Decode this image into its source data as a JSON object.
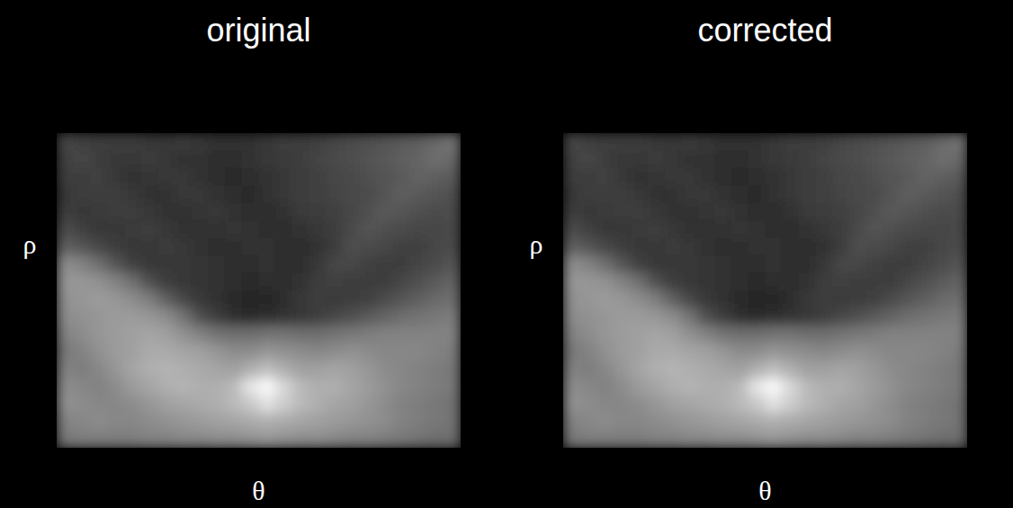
{
  "chart_data": [
    {
      "type": "heatmap",
      "title": "original",
      "xlabel": "θ",
      "ylabel": "ρ",
      "tick_labels": false,
      "zlim": [
        0,
        255
      ],
      "cells": [
        [
          70,
          65,
          60,
          62,
          60,
          55,
          55,
          58,
          55,
          50,
          48,
          50,
          55,
          60,
          60,
          65,
          70,
          75,
          80,
          85,
          90,
          95,
          105,
          115
        ],
        [
          65,
          70,
          60,
          55,
          55,
          58,
          55,
          50,
          48,
          45,
          45,
          50,
          55,
          58,
          62,
          68,
          72,
          78,
          82,
          88,
          95,
          100,
          110,
          105
        ],
        [
          60,
          60,
          65,
          55,
          50,
          52,
          55,
          55,
          50,
          45,
          42,
          45,
          50,
          55,
          60,
          65,
          70,
          72,
          80,
          85,
          90,
          100,
          95,
          90
        ],
        [
          55,
          60,
          60,
          62,
          55,
          50,
          50,
          55,
          55,
          50,
          45,
          42,
          48,
          55,
          60,
          65,
          68,
          72,
          75,
          85,
          95,
          90,
          85,
          80
        ],
        [
          60,
          55,
          58,
          60,
          60,
          55,
          50,
          50,
          52,
          55,
          48,
          45,
          45,
          50,
          58,
          62,
          65,
          70,
          80,
          90,
          85,
          80,
          75,
          75
        ],
        [
          75,
          65,
          55,
          55,
          58,
          60,
          55,
          50,
          48,
          50,
          52,
          48,
          45,
          45,
          50,
          55,
          60,
          72,
          85,
          80,
          75,
          70,
          70,
          72
        ],
        [
          95,
          85,
          70,
          60,
          55,
          55,
          58,
          55,
          50,
          45,
          45,
          50,
          48,
          45,
          45,
          50,
          62,
          78,
          75,
          70,
          65,
          65,
          70,
          75
        ],
        [
          140,
          130,
          110,
          85,
          65,
          55,
          55,
          55,
          52,
          48,
          45,
          45,
          48,
          45,
          45,
          55,
          70,
          70,
          65,
          62,
          62,
          68,
          75,
          85
        ],
        [
          150,
          150,
          145,
          130,
          110,
          80,
          60,
          55,
          52,
          50,
          45,
          42,
          45,
          45,
          50,
          62,
          65,
          62,
          60,
          62,
          70,
          80,
          90,
          100
        ],
        [
          145,
          150,
          155,
          150,
          140,
          125,
          95,
          70,
          55,
          48,
          42,
          40,
          40,
          45,
          55,
          60,
          58,
          60,
          65,
          75,
          85,
          95,
          105,
          110
        ],
        [
          140,
          145,
          150,
          155,
          155,
          150,
          140,
          115,
          80,
          60,
          45,
          42,
          45,
          50,
          55,
          60,
          70,
          80,
          90,
          100,
          110,
          115,
          120,
          125
        ],
        [
          130,
          140,
          150,
          155,
          160,
          165,
          160,
          145,
          130,
          115,
          110,
          110,
          115,
          115,
          110,
          110,
          115,
          120,
          125,
          130,
          130,
          130,
          130,
          130
        ],
        [
          120,
          130,
          145,
          155,
          160,
          170,
          170,
          165,
          160,
          150,
          140,
          140,
          150,
          145,
          140,
          135,
          140,
          145,
          140,
          135,
          135,
          135,
          130,
          125
        ],
        [
          130,
          125,
          135,
          150,
          165,
          175,
          180,
          175,
          170,
          165,
          160,
          175,
          190,
          175,
          160,
          160,
          165,
          160,
          150,
          140,
          135,
          130,
          125,
          120
        ],
        [
          140,
          135,
          130,
          140,
          155,
          165,
          175,
          180,
          175,
          175,
          185,
          230,
          250,
          215,
          185,
          175,
          175,
          165,
          155,
          145,
          135,
          130,
          125,
          120
        ],
        [
          145,
          140,
          135,
          135,
          140,
          150,
          160,
          165,
          170,
          175,
          185,
          200,
          225,
          205,
          185,
          175,
          165,
          160,
          150,
          140,
          130,
          125,
          120,
          115
        ],
        [
          130,
          135,
          140,
          135,
          135,
          140,
          145,
          150,
          155,
          160,
          165,
          170,
          175,
          170,
          165,
          160,
          155,
          150,
          145,
          140,
          130,
          125,
          120,
          115
        ],
        [
          120,
          125,
          125,
          125,
          125,
          130,
          130,
          135,
          135,
          140,
          140,
          145,
          150,
          145,
          140,
          140,
          135,
          130,
          130,
          125,
          120,
          115,
          110,
          110
        ]
      ]
    },
    {
      "type": "heatmap",
      "title": "corrected",
      "xlabel": "θ",
      "ylabel": "ρ",
      "tick_labels": false,
      "zlim": [
        0,
        255
      ],
      "cells": [
        [
          70,
          65,
          60,
          62,
          60,
          55,
          55,
          58,
          55,
          50,
          48,
          50,
          55,
          60,
          60,
          65,
          70,
          75,
          80,
          85,
          90,
          95,
          105,
          115
        ],
        [
          65,
          70,
          60,
          55,
          55,
          58,
          55,
          50,
          48,
          45,
          45,
          50,
          55,
          58,
          62,
          68,
          72,
          78,
          82,
          88,
          95,
          100,
          110,
          105
        ],
        [
          60,
          60,
          65,
          55,
          50,
          52,
          55,
          55,
          50,
          45,
          42,
          45,
          50,
          55,
          60,
          65,
          70,
          72,
          80,
          85,
          90,
          100,
          95,
          90
        ],
        [
          55,
          60,
          60,
          62,
          55,
          50,
          50,
          55,
          55,
          50,
          45,
          42,
          48,
          55,
          60,
          65,
          68,
          72,
          75,
          85,
          95,
          90,
          85,
          80
        ],
        [
          60,
          55,
          58,
          60,
          60,
          55,
          50,
          50,
          52,
          55,
          48,
          45,
          45,
          50,
          58,
          62,
          65,
          70,
          80,
          90,
          85,
          80,
          75,
          75
        ],
        [
          75,
          65,
          55,
          55,
          58,
          60,
          55,
          50,
          48,
          50,
          52,
          48,
          45,
          45,
          50,
          55,
          60,
          72,
          85,
          80,
          75,
          70,
          70,
          72
        ],
        [
          95,
          85,
          70,
          60,
          55,
          55,
          58,
          55,
          50,
          45,
          45,
          50,
          48,
          45,
          45,
          50,
          62,
          78,
          75,
          70,
          65,
          65,
          70,
          75
        ],
        [
          140,
          130,
          110,
          85,
          65,
          55,
          55,
          55,
          52,
          48,
          45,
          45,
          48,
          45,
          45,
          55,
          70,
          70,
          65,
          62,
          62,
          68,
          75,
          85
        ],
        [
          150,
          150,
          145,
          130,
          110,
          80,
          60,
          55,
          52,
          50,
          45,
          42,
          45,
          45,
          50,
          62,
          65,
          62,
          60,
          62,
          70,
          80,
          90,
          100
        ],
        [
          145,
          150,
          155,
          150,
          140,
          125,
          95,
          70,
          55,
          48,
          42,
          40,
          40,
          45,
          55,
          60,
          58,
          60,
          65,
          75,
          85,
          95,
          105,
          110
        ],
        [
          140,
          145,
          150,
          155,
          155,
          150,
          140,
          115,
          80,
          60,
          45,
          42,
          45,
          50,
          55,
          60,
          70,
          80,
          90,
          100,
          110,
          115,
          120,
          125
        ],
        [
          130,
          140,
          150,
          155,
          160,
          165,
          160,
          145,
          130,
          115,
          110,
          110,
          115,
          115,
          110,
          110,
          115,
          120,
          125,
          130,
          130,
          130,
          130,
          130
        ],
        [
          120,
          130,
          145,
          155,
          160,
          170,
          170,
          165,
          160,
          150,
          140,
          140,
          150,
          145,
          140,
          135,
          140,
          145,
          140,
          135,
          135,
          135,
          130,
          125
        ],
        [
          130,
          125,
          135,
          150,
          165,
          175,
          180,
          175,
          170,
          165,
          160,
          175,
          190,
          175,
          160,
          160,
          165,
          160,
          150,
          140,
          135,
          130,
          125,
          120
        ],
        [
          140,
          135,
          130,
          140,
          155,
          165,
          175,
          180,
          175,
          175,
          185,
          230,
          250,
          215,
          185,
          175,
          175,
          165,
          155,
          145,
          135,
          130,
          125,
          120
        ],
        [
          145,
          140,
          135,
          135,
          140,
          150,
          160,
          165,
          170,
          175,
          185,
          200,
          225,
          205,
          185,
          175,
          165,
          160,
          150,
          140,
          130,
          125,
          120,
          115
        ],
        [
          130,
          135,
          140,
          135,
          135,
          140,
          145,
          150,
          155,
          160,
          165,
          170,
          175,
          170,
          165,
          160,
          155,
          150,
          145,
          140,
          130,
          125,
          120,
          115
        ],
        [
          120,
          125,
          125,
          125,
          125,
          130,
          130,
          135,
          135,
          140,
          140,
          145,
          150,
          145,
          140,
          140,
          135,
          130,
          130,
          125,
          120,
          115,
          110,
          110
        ]
      ]
    }
  ]
}
